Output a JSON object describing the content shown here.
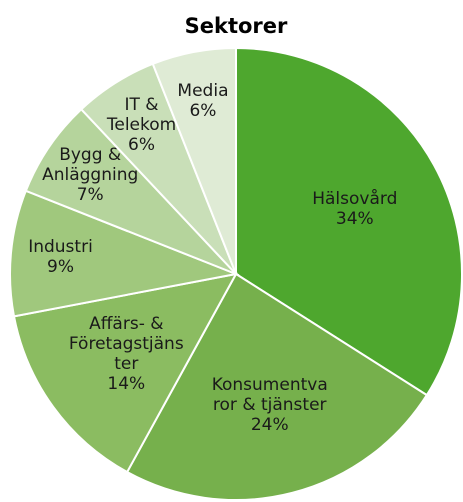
{
  "chart_data": {
    "type": "pie",
    "title": "Sektorer",
    "categories": [
      "Hälsovård",
      "Konsumentvaror & tjänster",
      "Affärs- & Företagstjänster",
      "Industri",
      "Bygg & Anläggning",
      "IT & Telekom",
      "Media"
    ],
    "values": [
      34,
      24,
      14,
      9,
      7,
      6,
      6
    ],
    "value_labels": [
      "34%",
      "24%",
      "14%",
      "9%",
      "7%",
      "6%",
      "6%"
    ],
    "colors": [
      "#4ea72e",
      "#76b04c",
      "#8bbc61",
      "#a0c87d",
      "#b5d49c",
      "#c9dfb8",
      "#dfebd5"
    ]
  }
}
